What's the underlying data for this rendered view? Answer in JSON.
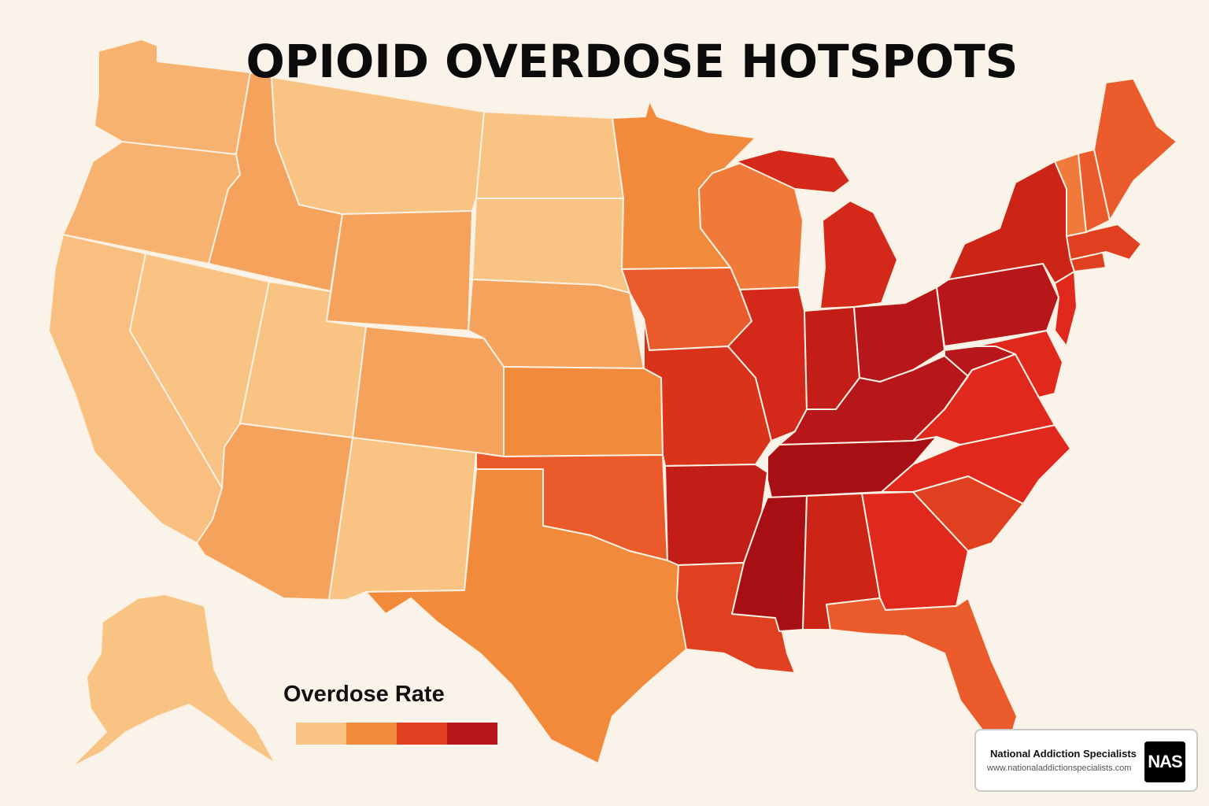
{
  "title": "OPIOID OVERDOSE HOTSPOTS",
  "legend": {
    "title": "Overdose Rate",
    "levels": [
      {
        "color": "#f9c384"
      },
      {
        "color": "#f28a3c"
      },
      {
        "color": "#e0401f"
      },
      {
        "color": "#b7161a"
      }
    ]
  },
  "colors": {
    "background": "#faf3ea",
    "border": "#fbf1e2",
    "light": "#f9c384",
    "light2": "#f6b26e",
    "medium": "#f4a25c",
    "medium2": "#f28a3c",
    "orange_red": "#ea5a2a",
    "red": "#e0401f",
    "deep_red": "#cc2518",
    "darkest": "#a80f14"
  },
  "brand": {
    "name": "National Addiction Specialists",
    "url": "www.nationaladdictionspecialists.com",
    "logo_text": "NAS"
  }
}
